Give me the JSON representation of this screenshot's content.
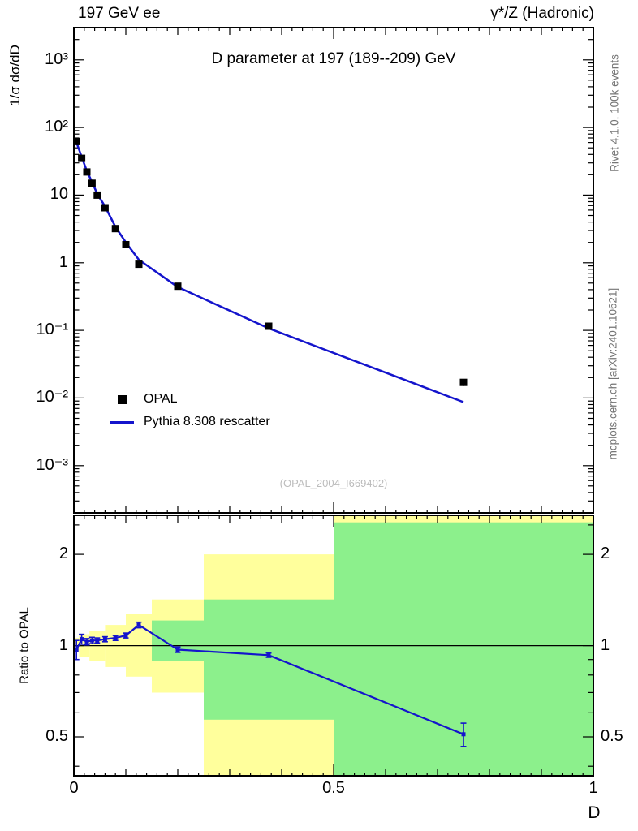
{
  "header": {
    "left": "197 GeV ee",
    "right": "γ*/Z (Hadronic)"
  },
  "sidebar_right": {
    "top": "Rivet 4.1.0, 100k events",
    "bottom": "mcplots.cern.ch [arXiv:2401.10621]"
  },
  "main_plot": {
    "title": "D parameter at 197 (189--209) GeV",
    "ylabel": "1/σ  dσ/dD",
    "watermark": "(OPAL_2004_I669402)",
    "legend": [
      {
        "label": "OPAL",
        "type": "marker"
      },
      {
        "label": "Pythia 8.308 rescatter",
        "type": "line"
      }
    ]
  },
  "ratio_plot": {
    "ylabel": "Ratio to OPAL"
  },
  "xaxis": {
    "label": "D"
  },
  "colors": {
    "line": "#1414cc",
    "marker": "#000000",
    "band_yellow": "#ffff9c",
    "band_green": "#8cf08c",
    "caption_gray": "#757575",
    "watermark_gray": "#bcbcbc"
  },
  "chart_data": [
    {
      "panel": "main",
      "type": "line",
      "title": "D parameter at 197 (189--209) GeV",
      "xlabel": "D",
      "ylabel": "1/σ dσ/dD",
      "xscale": "linear",
      "yscale": "log",
      "xlim": [
        0,
        1
      ],
      "ylim": [
        0.0002,
        3000
      ],
      "legend_position": "center-left",
      "grid": false,
      "xticks": [
        {
          "value": 0,
          "label": "0"
        },
        {
          "value": 0.5,
          "label": "0.5"
        },
        {
          "value": 1,
          "label": "1"
        }
      ],
      "yticks": [
        {
          "value": 1000,
          "label": "10³"
        },
        {
          "value": 100,
          "label": "10²"
        },
        {
          "value": 10,
          "label": "10"
        },
        {
          "value": 1,
          "label": "1"
        },
        {
          "value": 0.1,
          "label": "10⁻¹"
        },
        {
          "value": 0.01,
          "label": "10⁻²"
        },
        {
          "value": 0.001,
          "label": "10⁻³"
        }
      ],
      "series": [
        {
          "name": "OPAL",
          "type": "scatter",
          "marker": "square",
          "x": [
            0.005,
            0.015,
            0.025,
            0.035,
            0.045,
            0.06,
            0.08,
            0.1,
            0.125,
            0.2,
            0.375,
            0.75
          ],
          "y": [
            62,
            35,
            22,
            15,
            10,
            6.5,
            3.2,
            1.85,
            0.95,
            0.45,
            0.115,
            0.017
          ],
          "yerr": [
            5,
            3,
            2,
            1.4,
            0.9,
            0.55,
            0.28,
            0.15,
            0.08,
            0.035,
            0.008,
            0.002
          ]
        },
        {
          "name": "Pythia 8.308 rescatter",
          "type": "line",
          "x": [
            0.005,
            0.015,
            0.025,
            0.035,
            0.045,
            0.06,
            0.08,
            0.1,
            0.125,
            0.2,
            0.375,
            0.75
          ],
          "y": [
            60.1,
            36.8,
            22.7,
            15.6,
            10.4,
            6.8,
            3.4,
            2.0,
            1.11,
            0.437,
            0.107,
            0.0087
          ]
        }
      ]
    },
    {
      "panel": "ratio",
      "type": "ratio",
      "ylabel": "Ratio to OPAL",
      "yscale": "log",
      "xlim": [
        0,
        1
      ],
      "ylim": [
        0.372,
        2.69
      ],
      "reference_line": 1,
      "yticks": [
        {
          "value": 2,
          "label": "2"
        },
        {
          "value": 1,
          "label": "1"
        },
        {
          "value": 0.5,
          "label": "0.5"
        }
      ],
      "yticks_minor": [
        0.4,
        0.6,
        0.7,
        0.8,
        0.9,
        2.5
      ],
      "bands": [
        {
          "color": "yellow",
          "x0": 0,
          "x1": 0.01,
          "y0": 0.95,
          "y1": 1.06
        },
        {
          "color": "yellow",
          "x0": 0.01,
          "x1": 0.03,
          "y0": 0.92,
          "y1": 1.09
        },
        {
          "color": "yellow",
          "x0": 0.03,
          "x1": 0.06,
          "y0": 0.89,
          "y1": 1.12
        },
        {
          "color": "yellow",
          "x0": 0.06,
          "x1": 0.1,
          "y0": 0.85,
          "y1": 1.17
        },
        {
          "color": "yellow",
          "x0": 0.1,
          "x1": 0.15,
          "y0": 0.79,
          "y1": 1.27
        },
        {
          "color": "yellow",
          "x0": 0.15,
          "x1": 0.25,
          "y0": 0.7,
          "y1": 1.42
        },
        {
          "color": "yellow",
          "x0": 0.25,
          "x1": 0.5,
          "y0": 0.372,
          "y1": 2.0
        },
        {
          "color": "yellow",
          "x0": 0.5,
          "x1": 1,
          "y0": 0.372,
          "y1": 2.69
        },
        {
          "color": "green",
          "x0": 0.15,
          "x1": 0.25,
          "y0": 0.89,
          "y1": 1.21
        },
        {
          "color": "green",
          "x0": 0.25,
          "x1": 0.5,
          "y0": 0.57,
          "y1": 1.42
        },
        {
          "color": "green",
          "x0": 0.5,
          "x1": 1,
          "y0": 0.372,
          "y1": 2.55
        }
      ],
      "series": [
        {
          "name": "Pythia 8.308 rescatter / OPAL",
          "type": "line",
          "x": [
            0.005,
            0.015,
            0.025,
            0.035,
            0.045,
            0.06,
            0.08,
            0.1,
            0.125,
            0.2,
            0.375,
            0.75
          ],
          "y": [
            0.97,
            1.05,
            1.03,
            1.04,
            1.04,
            1.05,
            1.06,
            1.08,
            1.17,
            0.97,
            0.93,
            0.51
          ],
          "yerr": [
            0.07,
            0.04,
            0.025,
            0.025,
            0.02,
            0.02,
            0.02,
            0.02,
            0.025,
            0.02,
            0.015,
            0.045
          ]
        }
      ]
    }
  ]
}
